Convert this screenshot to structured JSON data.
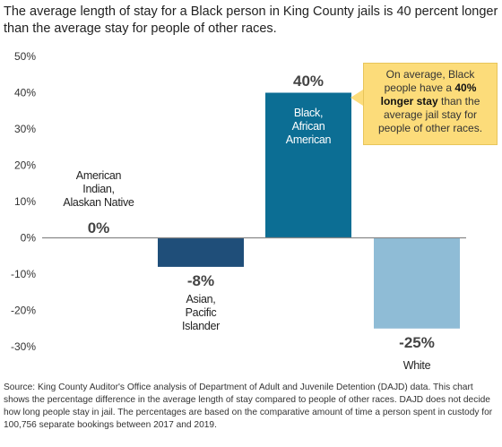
{
  "title": "The average length of stay for a Black person in King County jails is 40 percent longer than the average stay for people of other races.",
  "callout": {
    "pre": "On average, Black people have a ",
    "bold": "40% longer stay",
    "post": " than the average jail stay for people of other races."
  },
  "source": "Source: King County Auditor's Office analysis of Department of Adult and Juvenile Detention (DAJD) data. This chart shows the percentage difference in the average length of stay compared to people of other races. DAJD does not decide how long people stay in jail. The percentages are based on the comparative amount of time a person spent in custody for 100,756 separate bookings between 2017 and 2019.",
  "chart_data": {
    "type": "bar",
    "categories": [
      [
        "American",
        "Indian,",
        "Alaskan Native"
      ],
      [
        "Asian,",
        "Pacific",
        "Islander"
      ],
      [
        "Black,",
        "African",
        "American"
      ],
      [
        "White"
      ]
    ],
    "values": [
      0,
      -8,
      40,
      -25
    ],
    "value_labels": [
      "0%",
      "-8%",
      "40%",
      "-25%"
    ],
    "colors": [
      "#1f4e79",
      "#1f4e79",
      "#0c6e94",
      "#8fbcd6"
    ],
    "ylim": [
      -30,
      50
    ],
    "yticks": [
      50,
      40,
      30,
      20,
      10,
      0,
      -10,
      -20,
      -30
    ],
    "ytick_labels": [
      "50%",
      "40%",
      "30%",
      "20%",
      "10%",
      "0%",
      "-10%",
      "-20%",
      "-30%"
    ],
    "grid": false
  }
}
